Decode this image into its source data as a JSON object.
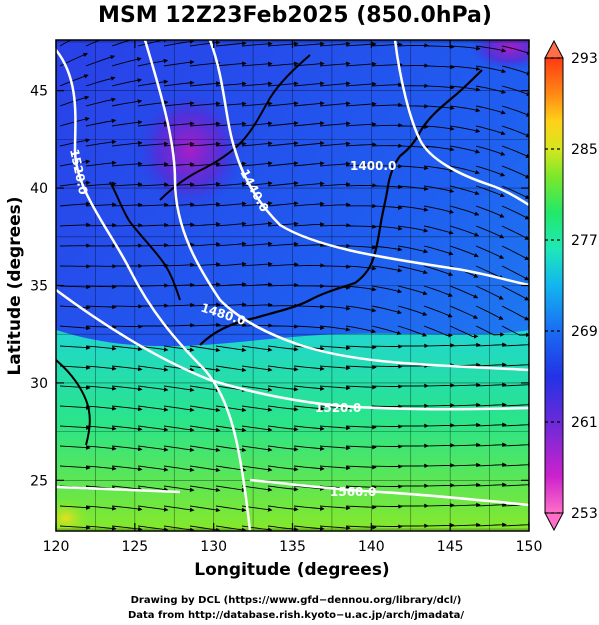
{
  "title": "MSM 12Z23Feb2025 (850.0hPa)",
  "x_axis": {
    "label": "Longitude (degrees)",
    "range": [
      120,
      150
    ],
    "ticks": [
      "120",
      "125",
      "130",
      "135",
      "140",
      "145",
      "150"
    ]
  },
  "y_axis": {
    "label": "Latitude  (degrees)",
    "range": [
      22.4,
      47.6
    ],
    "ticks": [
      "25",
      "30",
      "35",
      "40",
      "45"
    ]
  },
  "colorbar": {
    "range": [
      253,
      293
    ],
    "tick_labels": [
      "293",
      "285",
      "277",
      "269",
      "261",
      "253"
    ],
    "colors_low_to_high": [
      "#ff6fc8",
      "#cc22cc",
      "#6a2ad8",
      "#2233e6",
      "#1a6cf2",
      "#13b5f0",
      "#1ee8b8",
      "#22e86a",
      "#7ce82a",
      "#d6e61e",
      "#ffd21a",
      "#ff8a14",
      "#ff3a14",
      "#ff6d6d"
    ]
  },
  "contour_labels": [
    "1520.0",
    "1440.0",
    "1400.0",
    "1480.0",
    "1520.0",
    "1560.0"
  ],
  "credits": {
    "line1": "Drawing by DCL (https://www.gfd−dennou.org/library/dcl/)",
    "line2": "Data from http://database.rish.kyoto−u.ac.jp/arch/jmadata/"
  }
}
